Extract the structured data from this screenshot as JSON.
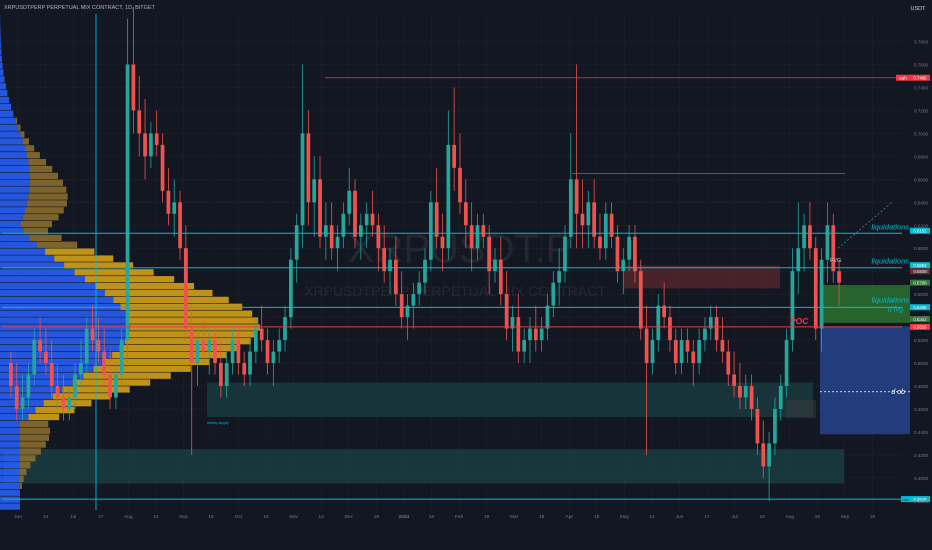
{
  "header": {
    "symbol_title": "XRPUSDTPERP PERPETUAL MIX CONTRACT, 1D, BITGET",
    "currency": "USDT"
  },
  "watermark": {
    "big": "XRPUSDT.P",
    "small": "XRPUSDTPERP PERPETUAL MIX CONTRACT"
  },
  "annotations": {
    "liq1": "liquidations",
    "liq2": "liquidations",
    "liq3": "liquidations",
    "dfvg": "d fvg",
    "dob": "d ob",
    "poc": "POC",
    "fvg": "FVG",
    "eqh": "eqh",
    "weekly_label": "weekly supply",
    "low_tag": "Low"
  },
  "colors": {
    "background": "#131722",
    "grid": "#1e222d",
    "up": "#26a69a",
    "down": "#ef5350",
    "cyan_line": "#00bcd4",
    "red_line": "#f23645",
    "vp_blue": "#2962ff",
    "vp_gold": "#d4a017",
    "vp_dark": "#4a4a4a",
    "zone_teal": "#1b4d4f",
    "zone_blue": "#2a4a9a",
    "zone_green": "#2e7d32",
    "zone_red": "#6b2a2f"
  },
  "chart_data": {
    "type": "candlestick",
    "y_axis": {
      "ticks": [
        0.38,
        0.4,
        0.42,
        0.44,
        0.46,
        0.48,
        0.5,
        0.52,
        0.54,
        0.56,
        0.58,
        0.6,
        0.62,
        0.64,
        0.66,
        0.68,
        0.7,
        0.72,
        0.74,
        0.76,
        0.78
      ],
      "range": [
        0.372,
        0.804
      ]
    },
    "x_axis": {
      "labels": [
        "Jun",
        "14",
        "Jul",
        "17",
        "Aug",
        "14",
        "Sep",
        "18",
        "Oct",
        "16",
        "Nov",
        "14",
        "Dec",
        "18",
        "2024",
        "15",
        "Feb",
        "19",
        "Mar",
        "18",
        "Apr",
        "15",
        "May",
        "13",
        "Jun",
        "17",
        "Jul",
        "15",
        "Aug",
        "19",
        "Sep",
        "16"
      ]
    },
    "levels": [
      {
        "name": "eqh",
        "value": 0.7485,
        "color": "#f23645"
      },
      {
        "name": "liquidations-1",
        "value": 0.613,
        "color": "#00bcd4"
      },
      {
        "name": "liquidations-2",
        "value": 0.583,
        "color": "#00bcd4"
      },
      {
        "name": "liquidations-3",
        "value": 0.5485,
        "color": "#00bcd4"
      },
      {
        "name": "POC",
        "value": 0.5315,
        "color": "#f23645"
      },
      {
        "name": "low",
        "value": 0.3815,
        "color": "#00bcd4"
      }
    ],
    "price_tags": [
      "0.6152",
      "0.5852",
      "0.5800",
      "0.5700",
      "0.5486",
      "0.5382",
      "0.5315",
      "0.3815",
      "0.7485"
    ],
    "candles": [
      {
        "o": 0.5,
        "h": 0.51,
        "l": 0.47,
        "c": 0.48
      },
      {
        "o": 0.48,
        "h": 0.5,
        "l": 0.45,
        "c": 0.46
      },
      {
        "o": 0.46,
        "h": 0.49,
        "l": 0.45,
        "c": 0.47
      },
      {
        "o": 0.47,
        "h": 0.5,
        "l": 0.46,
        "c": 0.49
      },
      {
        "o": 0.49,
        "h": 0.53,
        "l": 0.48,
        "c": 0.52
      },
      {
        "o": 0.52,
        "h": 0.54,
        "l": 0.5,
        "c": 0.51
      },
      {
        "o": 0.51,
        "h": 0.53,
        "l": 0.49,
        "c": 0.5
      },
      {
        "o": 0.5,
        "h": 0.52,
        "l": 0.47,
        "c": 0.48
      },
      {
        "o": 0.48,
        "h": 0.5,
        "l": 0.46,
        "c": 0.47
      },
      {
        "o": 0.47,
        "h": 0.49,
        "l": 0.45,
        "c": 0.46
      },
      {
        "o": 0.46,
        "h": 0.48,
        "l": 0.45,
        "c": 0.47
      },
      {
        "o": 0.47,
        "h": 0.5,
        "l": 0.46,
        "c": 0.49
      },
      {
        "o": 0.49,
        "h": 0.52,
        "l": 0.48,
        "c": 0.5
      },
      {
        "o": 0.5,
        "h": 0.54,
        "l": 0.49,
        "c": 0.53
      },
      {
        "o": 0.53,
        "h": 0.55,
        "l": 0.51,
        "c": 0.52
      },
      {
        "o": 0.52,
        "h": 0.54,
        "l": 0.5,
        "c": 0.51
      },
      {
        "o": 0.51,
        "h": 0.53,
        "l": 0.48,
        "c": 0.49
      },
      {
        "o": 0.49,
        "h": 0.51,
        "l": 0.46,
        "c": 0.47
      },
      {
        "o": 0.47,
        "h": 0.5,
        "l": 0.46,
        "c": 0.49
      },
      {
        "o": 0.49,
        "h": 0.53,
        "l": 0.48,
        "c": 0.52
      },
      {
        "o": 0.52,
        "h": 0.8,
        "l": 0.5,
        "c": 0.76
      },
      {
        "o": 0.76,
        "h": 0.81,
        "l": 0.7,
        "c": 0.72
      },
      {
        "o": 0.72,
        "h": 0.75,
        "l": 0.68,
        "c": 0.7
      },
      {
        "o": 0.7,
        "h": 0.73,
        "l": 0.66,
        "c": 0.68
      },
      {
        "o": 0.68,
        "h": 0.71,
        "l": 0.67,
        "c": 0.7
      },
      {
        "o": 0.7,
        "h": 0.72,
        "l": 0.68,
        "c": 0.69
      },
      {
        "o": 0.69,
        "h": 0.7,
        "l": 0.64,
        "c": 0.65
      },
      {
        "o": 0.65,
        "h": 0.67,
        "l": 0.62,
        "c": 0.63
      },
      {
        "o": 0.63,
        "h": 0.66,
        "l": 0.61,
        "c": 0.64
      },
      {
        "o": 0.64,
        "h": 0.65,
        "l": 0.59,
        "c": 0.6
      },
      {
        "o": 0.6,
        "h": 0.62,
        "l": 0.52,
        "c": 0.53
      },
      {
        "o": 0.53,
        "h": 0.55,
        "l": 0.42,
        "c": 0.5
      },
      {
        "o": 0.5,
        "h": 0.53,
        "l": 0.48,
        "c": 0.52
      },
      {
        "o": 0.52,
        "h": 0.54,
        "l": 0.5,
        "c": 0.51
      },
      {
        "o": 0.51,
        "h": 0.53,
        "l": 0.49,
        "c": 0.52
      },
      {
        "o": 0.52,
        "h": 0.53,
        "l": 0.49,
        "c": 0.5
      },
      {
        "o": 0.5,
        "h": 0.52,
        "l": 0.47,
        "c": 0.48
      },
      {
        "o": 0.48,
        "h": 0.51,
        "l": 0.47,
        "c": 0.5
      },
      {
        "o": 0.5,
        "h": 0.53,
        "l": 0.49,
        "c": 0.52
      },
      {
        "o": 0.52,
        "h": 0.53,
        "l": 0.49,
        "c": 0.5
      },
      {
        "o": 0.5,
        "h": 0.51,
        "l": 0.48,
        "c": 0.49
      },
      {
        "o": 0.49,
        "h": 0.52,
        "l": 0.48,
        "c": 0.51
      },
      {
        "o": 0.51,
        "h": 0.54,
        "l": 0.5,
        "c": 0.53
      },
      {
        "o": 0.53,
        "h": 0.55,
        "l": 0.51,
        "c": 0.52
      },
      {
        "o": 0.52,
        "h": 0.53,
        "l": 0.49,
        "c": 0.5
      },
      {
        "o": 0.5,
        "h": 0.52,
        "l": 0.48,
        "c": 0.51
      },
      {
        "o": 0.51,
        "h": 0.53,
        "l": 0.5,
        "c": 0.52
      },
      {
        "o": 0.52,
        "h": 0.55,
        "l": 0.51,
        "c": 0.54
      },
      {
        "o": 0.54,
        "h": 0.6,
        "l": 0.53,
        "c": 0.59
      },
      {
        "o": 0.59,
        "h": 0.63,
        "l": 0.57,
        "c": 0.62
      },
      {
        "o": 0.62,
        "h": 0.76,
        "l": 0.6,
        "c": 0.7
      },
      {
        "o": 0.7,
        "h": 0.72,
        "l": 0.62,
        "c": 0.64
      },
      {
        "o": 0.64,
        "h": 0.68,
        "l": 0.61,
        "c": 0.66
      },
      {
        "o": 0.66,
        "h": 0.68,
        "l": 0.6,
        "c": 0.61
      },
      {
        "o": 0.61,
        "h": 0.64,
        "l": 0.59,
        "c": 0.62
      },
      {
        "o": 0.62,
        "h": 0.64,
        "l": 0.59,
        "c": 0.6
      },
      {
        "o": 0.6,
        "h": 0.62,
        "l": 0.58,
        "c": 0.61
      },
      {
        "o": 0.61,
        "h": 0.64,
        "l": 0.6,
        "c": 0.63
      },
      {
        "o": 0.63,
        "h": 0.67,
        "l": 0.62,
        "c": 0.65
      },
      {
        "o": 0.65,
        "h": 0.66,
        "l": 0.6,
        "c": 0.61
      },
      {
        "o": 0.61,
        "h": 0.63,
        "l": 0.59,
        "c": 0.62
      },
      {
        "o": 0.62,
        "h": 0.64,
        "l": 0.6,
        "c": 0.63
      },
      {
        "o": 0.63,
        "h": 0.65,
        "l": 0.61,
        "c": 0.62
      },
      {
        "o": 0.62,
        "h": 0.63,
        "l": 0.58,
        "c": 0.6
      },
      {
        "o": 0.6,
        "h": 0.62,
        "l": 0.57,
        "c": 0.58
      },
      {
        "o": 0.58,
        "h": 0.6,
        "l": 0.56,
        "c": 0.59
      },
      {
        "o": 0.59,
        "h": 0.61,
        "l": 0.55,
        "c": 0.56
      },
      {
        "o": 0.56,
        "h": 0.58,
        "l": 0.53,
        "c": 0.54
      },
      {
        "o": 0.54,
        "h": 0.56,
        "l": 0.52,
        "c": 0.55
      },
      {
        "o": 0.55,
        "h": 0.57,
        "l": 0.53,
        "c": 0.56
      },
      {
        "o": 0.56,
        "h": 0.58,
        "l": 0.55,
        "c": 0.57
      },
      {
        "o": 0.57,
        "h": 0.6,
        "l": 0.56,
        "c": 0.59
      },
      {
        "o": 0.59,
        "h": 0.65,
        "l": 0.58,
        "c": 0.64
      },
      {
        "o": 0.64,
        "h": 0.67,
        "l": 0.6,
        "c": 0.61
      },
      {
        "o": 0.61,
        "h": 0.63,
        "l": 0.58,
        "c": 0.6
      },
      {
        "o": 0.6,
        "h": 0.72,
        "l": 0.59,
        "c": 0.69
      },
      {
        "o": 0.69,
        "h": 0.74,
        "l": 0.65,
        "c": 0.67
      },
      {
        "o": 0.67,
        "h": 0.7,
        "l": 0.63,
        "c": 0.64
      },
      {
        "o": 0.64,
        "h": 0.66,
        "l": 0.6,
        "c": 0.62
      },
      {
        "o": 0.62,
        "h": 0.64,
        "l": 0.58,
        "c": 0.6
      },
      {
        "o": 0.6,
        "h": 0.63,
        "l": 0.59,
        "c": 0.62
      },
      {
        "o": 0.62,
        "h": 0.63,
        "l": 0.6,
        "c": 0.61
      },
      {
        "o": 0.61,
        "h": 0.62,
        "l": 0.56,
        "c": 0.58
      },
      {
        "o": 0.58,
        "h": 0.6,
        "l": 0.57,
        "c": 0.59
      },
      {
        "o": 0.59,
        "h": 0.61,
        "l": 0.55,
        "c": 0.56
      },
      {
        "o": 0.56,
        "h": 0.58,
        "l": 0.52,
        "c": 0.53
      },
      {
        "o": 0.53,
        "h": 0.55,
        "l": 0.51,
        "c": 0.54
      },
      {
        "o": 0.54,
        "h": 0.56,
        "l": 0.5,
        "c": 0.51
      },
      {
        "o": 0.51,
        "h": 0.53,
        "l": 0.5,
        "c": 0.52
      },
      {
        "o": 0.52,
        "h": 0.54,
        "l": 0.5,
        "c": 0.53
      },
      {
        "o": 0.53,
        "h": 0.55,
        "l": 0.51,
        "c": 0.52
      },
      {
        "o": 0.52,
        "h": 0.54,
        "l": 0.51,
        "c": 0.53
      },
      {
        "o": 0.53,
        "h": 0.56,
        "l": 0.52,
        "c": 0.55
      },
      {
        "o": 0.55,
        "h": 0.58,
        "l": 0.54,
        "c": 0.57
      },
      {
        "o": 0.57,
        "h": 0.6,
        "l": 0.55,
        "c": 0.58
      },
      {
        "o": 0.58,
        "h": 0.62,
        "l": 0.57,
        "c": 0.61
      },
      {
        "o": 0.61,
        "h": 0.7,
        "l": 0.6,
        "c": 0.66
      },
      {
        "o": 0.66,
        "h": 0.76,
        "l": 0.6,
        "c": 0.63
      },
      {
        "o": 0.63,
        "h": 0.66,
        "l": 0.6,
        "c": 0.62
      },
      {
        "o": 0.62,
        "h": 0.65,
        "l": 0.6,
        "c": 0.64
      },
      {
        "o": 0.64,
        "h": 0.66,
        "l": 0.6,
        "c": 0.61
      },
      {
        "o": 0.61,
        "h": 0.63,
        "l": 0.59,
        "c": 0.6
      },
      {
        "o": 0.6,
        "h": 0.64,
        "l": 0.59,
        "c": 0.63
      },
      {
        "o": 0.63,
        "h": 0.64,
        "l": 0.6,
        "c": 0.61
      },
      {
        "o": 0.61,
        "h": 0.62,
        "l": 0.57,
        "c": 0.58
      },
      {
        "o": 0.58,
        "h": 0.6,
        "l": 0.56,
        "c": 0.59
      },
      {
        "o": 0.59,
        "h": 0.62,
        "l": 0.58,
        "c": 0.61
      },
      {
        "o": 0.61,
        "h": 0.62,
        "l": 0.57,
        "c": 0.58
      },
      {
        "o": 0.58,
        "h": 0.59,
        "l": 0.52,
        "c": 0.53
      },
      {
        "o": 0.53,
        "h": 0.55,
        "l": 0.42,
        "c": 0.5
      },
      {
        "o": 0.5,
        "h": 0.53,
        "l": 0.49,
        "c": 0.52
      },
      {
        "o": 0.52,
        "h": 0.56,
        "l": 0.51,
        "c": 0.55
      },
      {
        "o": 0.55,
        "h": 0.57,
        "l": 0.53,
        "c": 0.54
      },
      {
        "o": 0.54,
        "h": 0.55,
        "l": 0.51,
        "c": 0.52
      },
      {
        "o": 0.52,
        "h": 0.53,
        "l": 0.49,
        "c": 0.5
      },
      {
        "o": 0.5,
        "h": 0.53,
        "l": 0.49,
        "c": 0.52
      },
      {
        "o": 0.52,
        "h": 0.53,
        "l": 0.5,
        "c": 0.51
      },
      {
        "o": 0.51,
        "h": 0.52,
        "l": 0.48,
        "c": 0.5
      },
      {
        "o": 0.5,
        "h": 0.53,
        "l": 0.49,
        "c": 0.52
      },
      {
        "o": 0.52,
        "h": 0.54,
        "l": 0.51,
        "c": 0.53
      },
      {
        "o": 0.53,
        "h": 0.55,
        "l": 0.52,
        "c": 0.54
      },
      {
        "o": 0.54,
        "h": 0.55,
        "l": 0.51,
        "c": 0.52
      },
      {
        "o": 0.52,
        "h": 0.54,
        "l": 0.5,
        "c": 0.51
      },
      {
        "o": 0.51,
        "h": 0.52,
        "l": 0.48,
        "c": 0.49
      },
      {
        "o": 0.49,
        "h": 0.51,
        "l": 0.47,
        "c": 0.48
      },
      {
        "o": 0.48,
        "h": 0.5,
        "l": 0.46,
        "c": 0.47
      },
      {
        "o": 0.47,
        "h": 0.49,
        "l": 0.46,
        "c": 0.48
      },
      {
        "o": 0.48,
        "h": 0.49,
        "l": 0.45,
        "c": 0.46
      },
      {
        "o": 0.46,
        "h": 0.47,
        "l": 0.42,
        "c": 0.43
      },
      {
        "o": 0.43,
        "h": 0.45,
        "l": 0.4,
        "c": 0.41
      },
      {
        "o": 0.41,
        "h": 0.44,
        "l": 0.38,
        "c": 0.43
      },
      {
        "o": 0.43,
        "h": 0.47,
        "l": 0.42,
        "c": 0.46
      },
      {
        "o": 0.46,
        "h": 0.49,
        "l": 0.45,
        "c": 0.48
      },
      {
        "o": 0.48,
        "h": 0.53,
        "l": 0.47,
        "c": 0.52
      },
      {
        "o": 0.52,
        "h": 0.6,
        "l": 0.51,
        "c": 0.58
      },
      {
        "o": 0.58,
        "h": 0.64,
        "l": 0.56,
        "c": 0.6
      },
      {
        "o": 0.6,
        "h": 0.63,
        "l": 0.58,
        "c": 0.62
      },
      {
        "o": 0.62,
        "h": 0.64,
        "l": 0.59,
        "c": 0.6
      },
      {
        "o": 0.6,
        "h": 0.61,
        "l": 0.52,
        "c": 0.53
      },
      {
        "o": 0.53,
        "h": 0.6,
        "l": 0.51,
        "c": 0.59
      },
      {
        "o": 0.59,
        "h": 0.64,
        "l": 0.57,
        "c": 0.62
      },
      {
        "o": 0.62,
        "h": 0.63,
        "l": 0.57,
        "c": 0.58
      },
      {
        "o": 0.58,
        "h": 0.59,
        "l": 0.55,
        "c": 0.57
      }
    ]
  }
}
